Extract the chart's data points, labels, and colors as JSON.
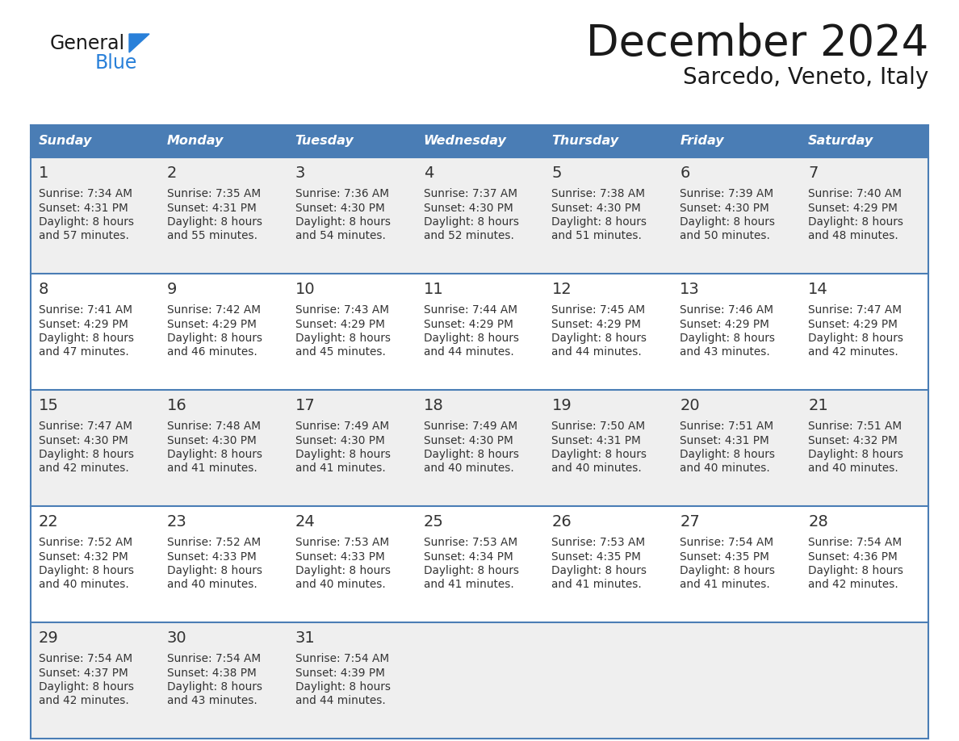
{
  "title": "December 2024",
  "subtitle": "Sarcedo, Veneto, Italy",
  "header_color": "#4a7db5",
  "header_text_color": "#FFFFFF",
  "cell_bg_light": "#EFEFEF",
  "cell_bg_white": "#FFFFFF",
  "border_color": "#4a7db5",
  "text_color": "#333333",
  "days_of_week": [
    "Sunday",
    "Monday",
    "Tuesday",
    "Wednesday",
    "Thursday",
    "Friday",
    "Saturday"
  ],
  "calendar_data": [
    [
      {
        "day": 1,
        "sunrise": "7:34 AM",
        "sunset": "4:31 PM",
        "daylight": "8 hours and 57 minutes"
      },
      {
        "day": 2,
        "sunrise": "7:35 AM",
        "sunset": "4:31 PM",
        "daylight": "8 hours and 55 minutes"
      },
      {
        "day": 3,
        "sunrise": "7:36 AM",
        "sunset": "4:30 PM",
        "daylight": "8 hours and 54 minutes"
      },
      {
        "day": 4,
        "sunrise": "7:37 AM",
        "sunset": "4:30 PM",
        "daylight": "8 hours and 52 minutes"
      },
      {
        "day": 5,
        "sunrise": "7:38 AM",
        "sunset": "4:30 PM",
        "daylight": "8 hours and 51 minutes"
      },
      {
        "day": 6,
        "sunrise": "7:39 AM",
        "sunset": "4:30 PM",
        "daylight": "8 hours and 50 minutes"
      },
      {
        "day": 7,
        "sunrise": "7:40 AM",
        "sunset": "4:29 PM",
        "daylight": "8 hours and 48 minutes"
      }
    ],
    [
      {
        "day": 8,
        "sunrise": "7:41 AM",
        "sunset": "4:29 PM",
        "daylight": "8 hours and 47 minutes"
      },
      {
        "day": 9,
        "sunrise": "7:42 AM",
        "sunset": "4:29 PM",
        "daylight": "8 hours and 46 minutes"
      },
      {
        "day": 10,
        "sunrise": "7:43 AM",
        "sunset": "4:29 PM",
        "daylight": "8 hours and 45 minutes"
      },
      {
        "day": 11,
        "sunrise": "7:44 AM",
        "sunset": "4:29 PM",
        "daylight": "8 hours and 44 minutes"
      },
      {
        "day": 12,
        "sunrise": "7:45 AM",
        "sunset": "4:29 PM",
        "daylight": "8 hours and 44 minutes"
      },
      {
        "day": 13,
        "sunrise": "7:46 AM",
        "sunset": "4:29 PM",
        "daylight": "8 hours and 43 minutes"
      },
      {
        "day": 14,
        "sunrise": "7:47 AM",
        "sunset": "4:29 PM",
        "daylight": "8 hours and 42 minutes"
      }
    ],
    [
      {
        "day": 15,
        "sunrise": "7:47 AM",
        "sunset": "4:30 PM",
        "daylight": "8 hours and 42 minutes"
      },
      {
        "day": 16,
        "sunrise": "7:48 AM",
        "sunset": "4:30 PM",
        "daylight": "8 hours and 41 minutes"
      },
      {
        "day": 17,
        "sunrise": "7:49 AM",
        "sunset": "4:30 PM",
        "daylight": "8 hours and 41 minutes"
      },
      {
        "day": 18,
        "sunrise": "7:49 AM",
        "sunset": "4:30 PM",
        "daylight": "8 hours and 40 minutes"
      },
      {
        "day": 19,
        "sunrise": "7:50 AM",
        "sunset": "4:31 PM",
        "daylight": "8 hours and 40 minutes"
      },
      {
        "day": 20,
        "sunrise": "7:51 AM",
        "sunset": "4:31 PM",
        "daylight": "8 hours and 40 minutes"
      },
      {
        "day": 21,
        "sunrise": "7:51 AM",
        "sunset": "4:32 PM",
        "daylight": "8 hours and 40 minutes"
      }
    ],
    [
      {
        "day": 22,
        "sunrise": "7:52 AM",
        "sunset": "4:32 PM",
        "daylight": "8 hours and 40 minutes"
      },
      {
        "day": 23,
        "sunrise": "7:52 AM",
        "sunset": "4:33 PM",
        "daylight": "8 hours and 40 minutes"
      },
      {
        "day": 24,
        "sunrise": "7:53 AM",
        "sunset": "4:33 PM",
        "daylight": "8 hours and 40 minutes"
      },
      {
        "day": 25,
        "sunrise": "7:53 AM",
        "sunset": "4:34 PM",
        "daylight": "8 hours and 41 minutes"
      },
      {
        "day": 26,
        "sunrise": "7:53 AM",
        "sunset": "4:35 PM",
        "daylight": "8 hours and 41 minutes"
      },
      {
        "day": 27,
        "sunrise": "7:54 AM",
        "sunset": "4:35 PM",
        "daylight": "8 hours and 41 minutes"
      },
      {
        "day": 28,
        "sunrise": "7:54 AM",
        "sunset": "4:36 PM",
        "daylight": "8 hours and 42 minutes"
      }
    ],
    [
      {
        "day": 29,
        "sunrise": "7:54 AM",
        "sunset": "4:37 PM",
        "daylight": "8 hours and 42 minutes"
      },
      {
        "day": 30,
        "sunrise": "7:54 AM",
        "sunset": "4:38 PM",
        "daylight": "8 hours and 43 minutes"
      },
      {
        "day": 31,
        "sunrise": "7:54 AM",
        "sunset": "4:39 PM",
        "daylight": "8 hours and 44 minutes"
      },
      null,
      null,
      null,
      null
    ]
  ],
  "logo_text1": "General",
  "logo_text2": "Blue",
  "logo_color1": "#1a1a1a",
  "logo_color2": "#2980D9",
  "logo_triangle_color": "#2980D9",
  "fig_width": 11.88,
  "fig_height": 9.18,
  "dpi": 100
}
